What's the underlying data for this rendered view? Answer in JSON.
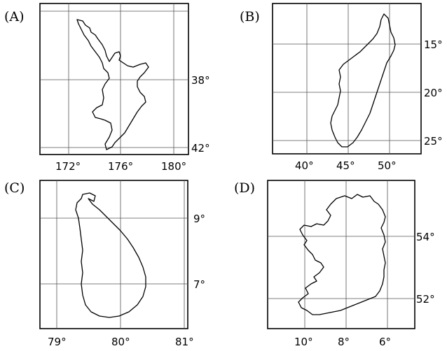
{
  "panels": [
    {
      "label": "(A)",
      "x_ticks": [
        "172°",
        "176°",
        "180°"
      ],
      "y_ticks": [
        "38°",
        "42°"
      ]
    },
    {
      "label": "(B)",
      "x_ticks": [
        "40°",
        "45°",
        "50°"
      ],
      "y_ticks": [
        "15°",
        "20°",
        "25°"
      ]
    },
    {
      "label": "(C)",
      "x_ticks": [
        "79°",
        "80°",
        "81°"
      ],
      "y_ticks": [
        "9°",
        "7°"
      ]
    },
    {
      "label": "(D)",
      "x_ticks": [
        "10°",
        "8°",
        "6°"
      ],
      "y_ticks": [
        "54°",
        "52°"
      ]
    }
  ]
}
